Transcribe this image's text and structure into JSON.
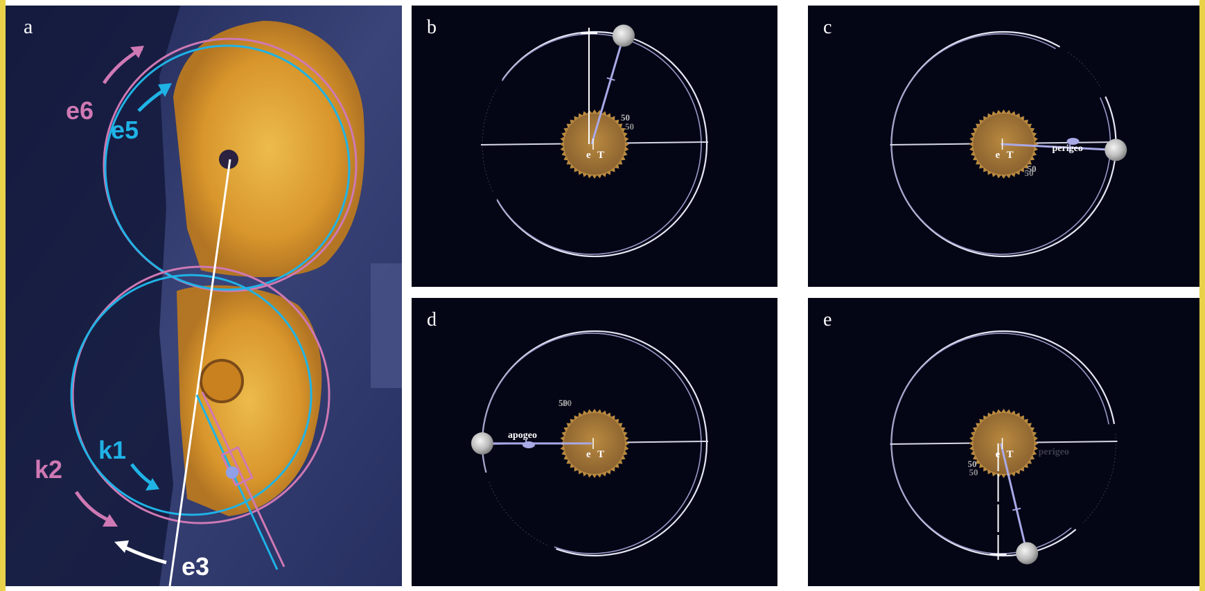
{
  "colors": {
    "frame": "#e9d24a",
    "panel_bg": "#040616",
    "divider": "#ffffff",
    "gear": "#a4773a",
    "gear_teeth": "#b8893f",
    "orbit": "#e6e6f4",
    "orbit_shadow": "#9a9ac8",
    "pointer": "#a9a9e6",
    "pink": "#cf79b4",
    "cyan": "#1fb3e6",
    "scan_bg": "#2b3568",
    "scan_gear": "#e8a12c"
  },
  "panels": {
    "a": {
      "label": "a",
      "annotations": {
        "e6": "e6",
        "e5": "e5",
        "k1": "k1",
        "k2": "k2",
        "e3": "e3"
      }
    },
    "b": {
      "label": "b",
      "eccentric_label": "e",
      "center_label": "T",
      "tick_label_1": "50",
      "tick_label_2": "50",
      "moon_angle_deg": -75
    },
    "c": {
      "label": "c",
      "eccentric_label": "e",
      "center_label": "T",
      "tick_label_1": "50",
      "tick_label_2": "50",
      "marker_label": "perigeo",
      "moon_angle_deg": 3
    },
    "d": {
      "label": "d",
      "eccentric_label": "e",
      "center_label": "T",
      "tick_label_1": "50",
      "tick_label_2": "50",
      "marker_label": "apogeo",
      "moon_angle_deg": 180
    },
    "e": {
      "label": "e",
      "eccentric_label": "e",
      "center_label": "T",
      "tick_label_1": "50",
      "tick_label_2": "50",
      "marker_label": "perigeo",
      "moon_angle_deg": 78
    }
  }
}
